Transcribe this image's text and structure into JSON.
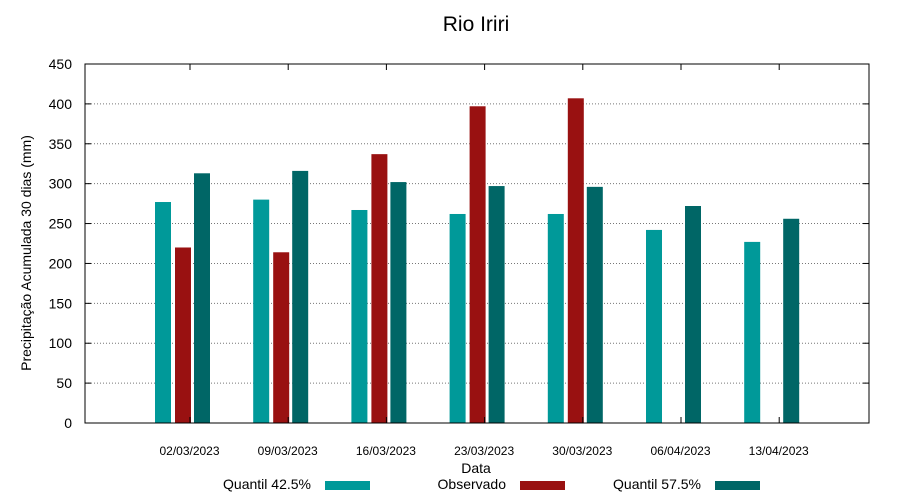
{
  "chart_data": {
    "type": "bar",
    "title": "Rio Iriri",
    "xlabel": "Data",
    "ylabel": "Precipitação Acumulada 30 dias (mm)",
    "ylim": [
      0,
      450
    ],
    "yticks": [
      0,
      50,
      100,
      150,
      200,
      250,
      300,
      350,
      400,
      450
    ],
    "grid": true,
    "legend_position": "bottom",
    "categories": [
      "02/03/2023",
      "09/03/2023",
      "16/03/2023",
      "23/03/2023",
      "30/03/2023",
      "06/04/2023",
      "13/04/2023"
    ],
    "series": [
      {
        "name": "Quantil 42.5%",
        "color": "#009999",
        "values": [
          277,
          280,
          267,
          262,
          262,
          242,
          227
        ]
      },
      {
        "name": "Observado",
        "color": "#991111",
        "values": [
          220,
          214,
          337,
          397,
          407,
          null,
          null
        ]
      },
      {
        "name": "Quantil 57.5%",
        "color": "#006666",
        "values": [
          313,
          316,
          302,
          297,
          296,
          272,
          256
        ]
      }
    ]
  }
}
